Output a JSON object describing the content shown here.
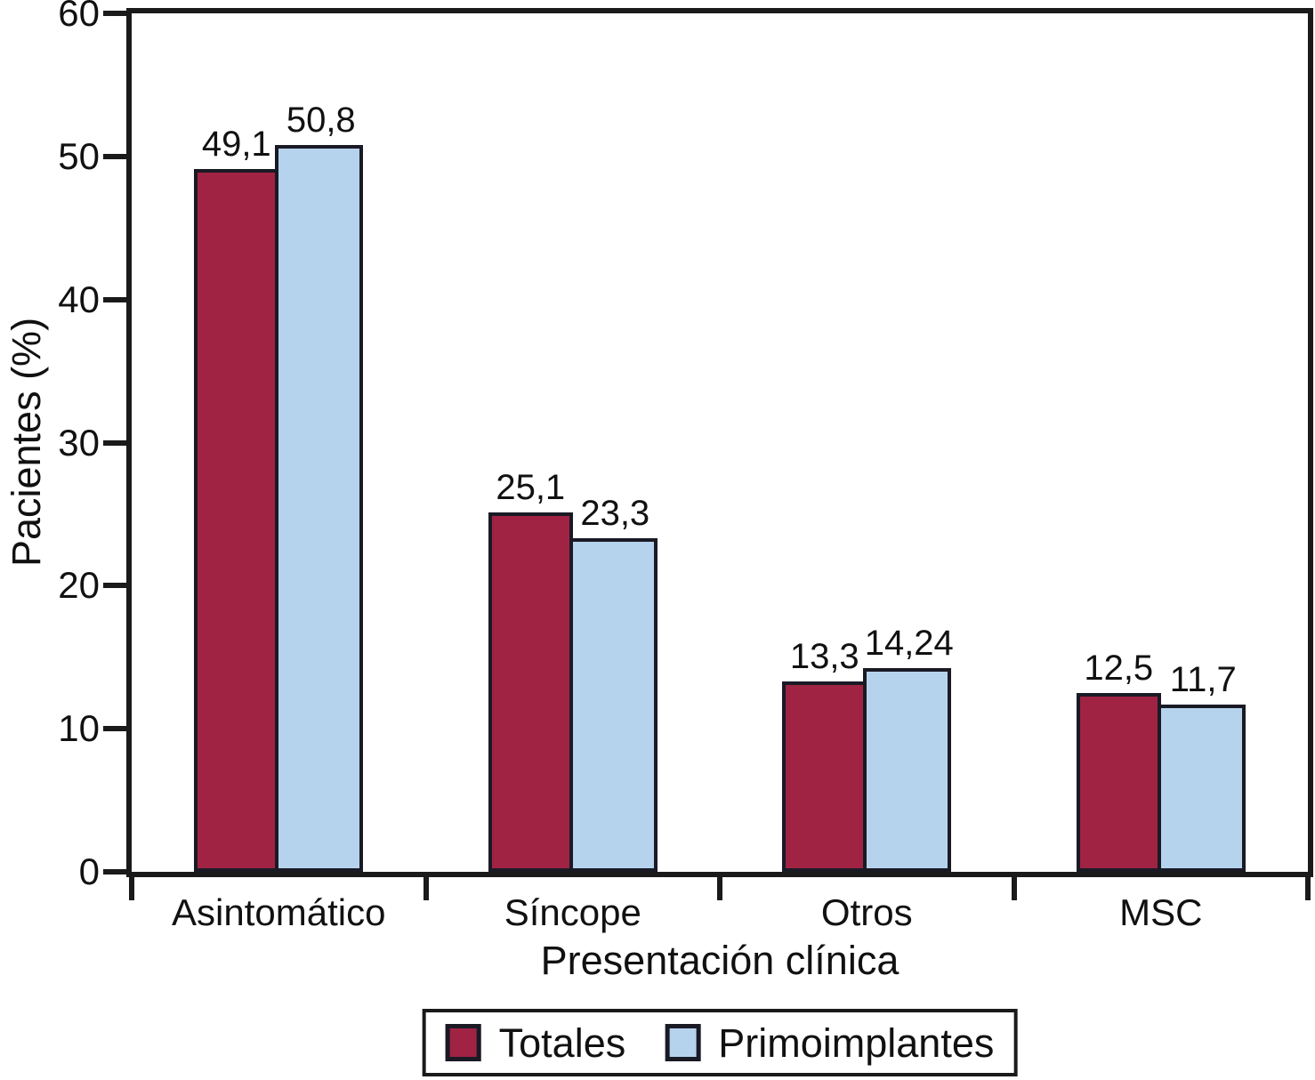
{
  "chart_data": {
    "type": "bar",
    "categories": [
      "Asintomático",
      "Síncope",
      "Otros",
      "MSC"
    ],
    "series": [
      {
        "name": "Totales",
        "color": "#A02344",
        "values": [
          49.1,
          25.1,
          13.3,
          12.5
        ],
        "value_labels": [
          "49,1",
          "25,1",
          "13,3",
          "12,5"
        ]
      },
      {
        "name": "Primoimplantes",
        "color": "#B6D3EE",
        "values": [
          50.8,
          23.3,
          14.24,
          11.7
        ],
        "value_labels": [
          "50,8",
          "23,3",
          "14,24",
          "11,7"
        ]
      }
    ],
    "xlabel": "Presentación clínica",
    "ylabel": "Pacientes (%)",
    "ylim": [
      0,
      60
    ],
    "yticks": [
      0,
      10,
      20,
      30,
      40,
      50,
      60
    ],
    "grid": false,
    "legend_position": "bottom",
    "bar_outline_color": "#1a1a25",
    "axis_color": "#1a1a1a",
    "text_color": "#111111"
  }
}
